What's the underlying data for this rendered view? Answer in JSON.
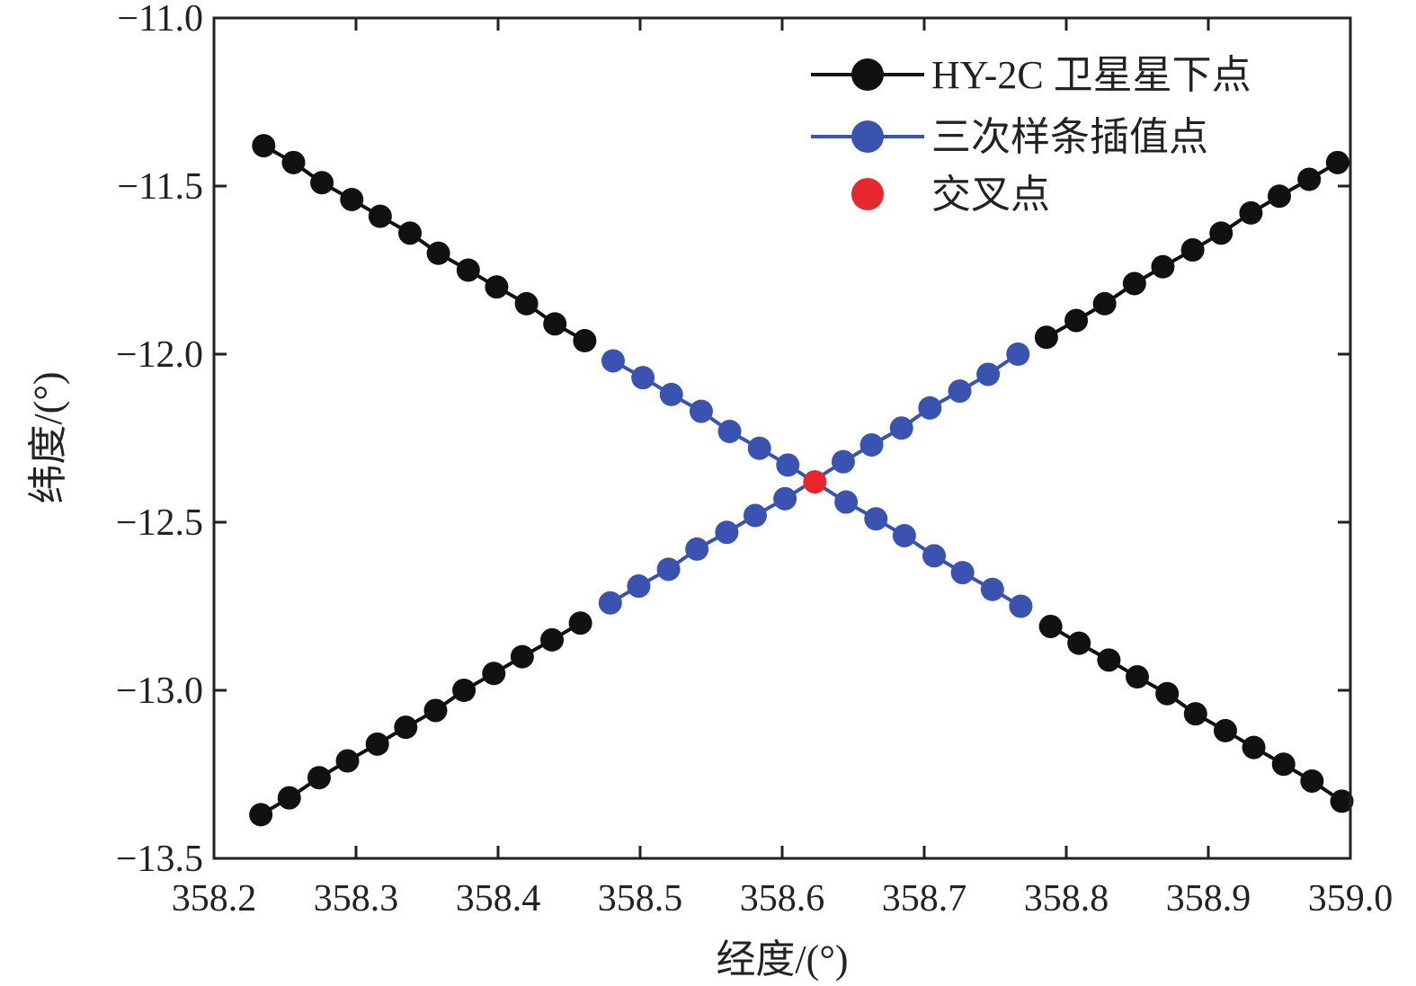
{
  "chart_data": {
    "type": "scatter",
    "title": "",
    "xlabel": "经度/(°)",
    "ylabel": "纬度/(°)",
    "xlim": [
      358.2,
      359.0
    ],
    "ylim": [
      -13.5,
      -11.0
    ],
    "xticks": [
      358.2,
      358.3,
      358.4,
      358.5,
      358.6,
      358.7,
      358.8,
      358.9,
      359.0
    ],
    "yticks": [
      -11.0,
      -11.5,
      -12.0,
      -12.5,
      -13.0,
      -13.5
    ],
    "xtick_labels": [
      "358.2",
      "358.3",
      "358.4",
      "358.5",
      "358.6",
      "358.7",
      "358.8",
      "358.9",
      "359.0"
    ],
    "ytick_labels": [
      "−11.0",
      "−11.5",
      "−12.0",
      "−12.5",
      "−13.0",
      "−13.5"
    ],
    "grid": false,
    "legend_position": "top-right",
    "series": [
      {
        "name": "HY-2C 卫星星下点",
        "color": "#111111",
        "marker": "circle",
        "line": true,
        "segments": [
          {
            "x": [
              358.235,
              358.256,
              358.276,
              358.297,
              358.317,
              358.338,
              358.358,
              358.379,
              358.399,
              358.42,
              358.44,
              358.461
            ],
            "y": [
              -11.38,
              -11.43,
              -11.49,
              -11.54,
              -11.59,
              -11.64,
              -11.7,
              -11.75,
              -11.8,
              -11.85,
              -11.91,
              -11.96
            ]
          },
          {
            "x": [
              358.789,
              358.809,
              358.83,
              358.85,
              358.871,
              358.891,
              358.912,
              358.932,
              358.953,
              358.973,
              358.994
            ],
            "y": [
              -12.81,
              -12.86,
              -12.91,
              -12.96,
              -13.01,
              -13.07,
              -13.12,
              -13.17,
              -13.22,
              -13.27,
              -13.33
            ]
          },
          {
            "x": [
              358.233,
              358.253,
              358.274,
              358.294,
              358.315,
              358.335,
              358.356,
              358.376,
              358.397,
              358.417,
              358.438,
              358.458
            ],
            "y": [
              -13.37,
              -13.32,
              -13.26,
              -13.21,
              -13.16,
              -13.11,
              -13.06,
              -13.0,
              -12.95,
              -12.9,
              -12.85,
              -12.8
            ]
          },
          {
            "x": [
              358.786,
              358.807,
              358.827,
              358.848,
              358.868,
              358.889,
              358.909,
              358.93,
              358.95,
              358.971,
              358.991
            ],
            "y": [
              -11.95,
              -11.9,
              -11.85,
              -11.79,
              -11.74,
              -11.69,
              -11.64,
              -11.58,
              -11.53,
              -11.48,
              -11.43
            ]
          }
        ]
      },
      {
        "name": "三次样条插值点",
        "color": "#3a53b0",
        "marker": "circle",
        "line": true,
        "segments": [
          {
            "x": [
              358.481,
              358.502,
              358.522,
              358.543,
              358.563,
              358.584,
              358.604,
              358.645,
              358.666,
              358.686,
              358.707,
              358.727,
              358.748,
              358.768
            ],
            "y": [
              -12.02,
              -12.07,
              -12.12,
              -12.17,
              -12.23,
              -12.28,
              -12.33,
              -12.44,
              -12.49,
              -12.54,
              -12.6,
              -12.65,
              -12.7,
              -12.75
            ]
          },
          {
            "x": [
              358.479,
              358.499,
              358.52,
              358.54,
              358.561,
              358.581,
              358.602,
              358.643,
              358.663,
              358.684,
              358.704,
              358.725,
              358.745,
              358.766
            ],
            "y": [
              -12.74,
              -12.69,
              -12.64,
              -12.58,
              -12.53,
              -12.48,
              -12.43,
              -12.32,
              -12.27,
              -12.22,
              -12.16,
              -12.11,
              -12.06,
              -12.0
            ]
          }
        ]
      },
      {
        "name": "交叉点",
        "color": "#e8262d",
        "marker": "circle",
        "line": false,
        "segments": [
          {
            "x": [
              358.623
            ],
            "y": [
              -12.38
            ]
          }
        ]
      }
    ]
  }
}
